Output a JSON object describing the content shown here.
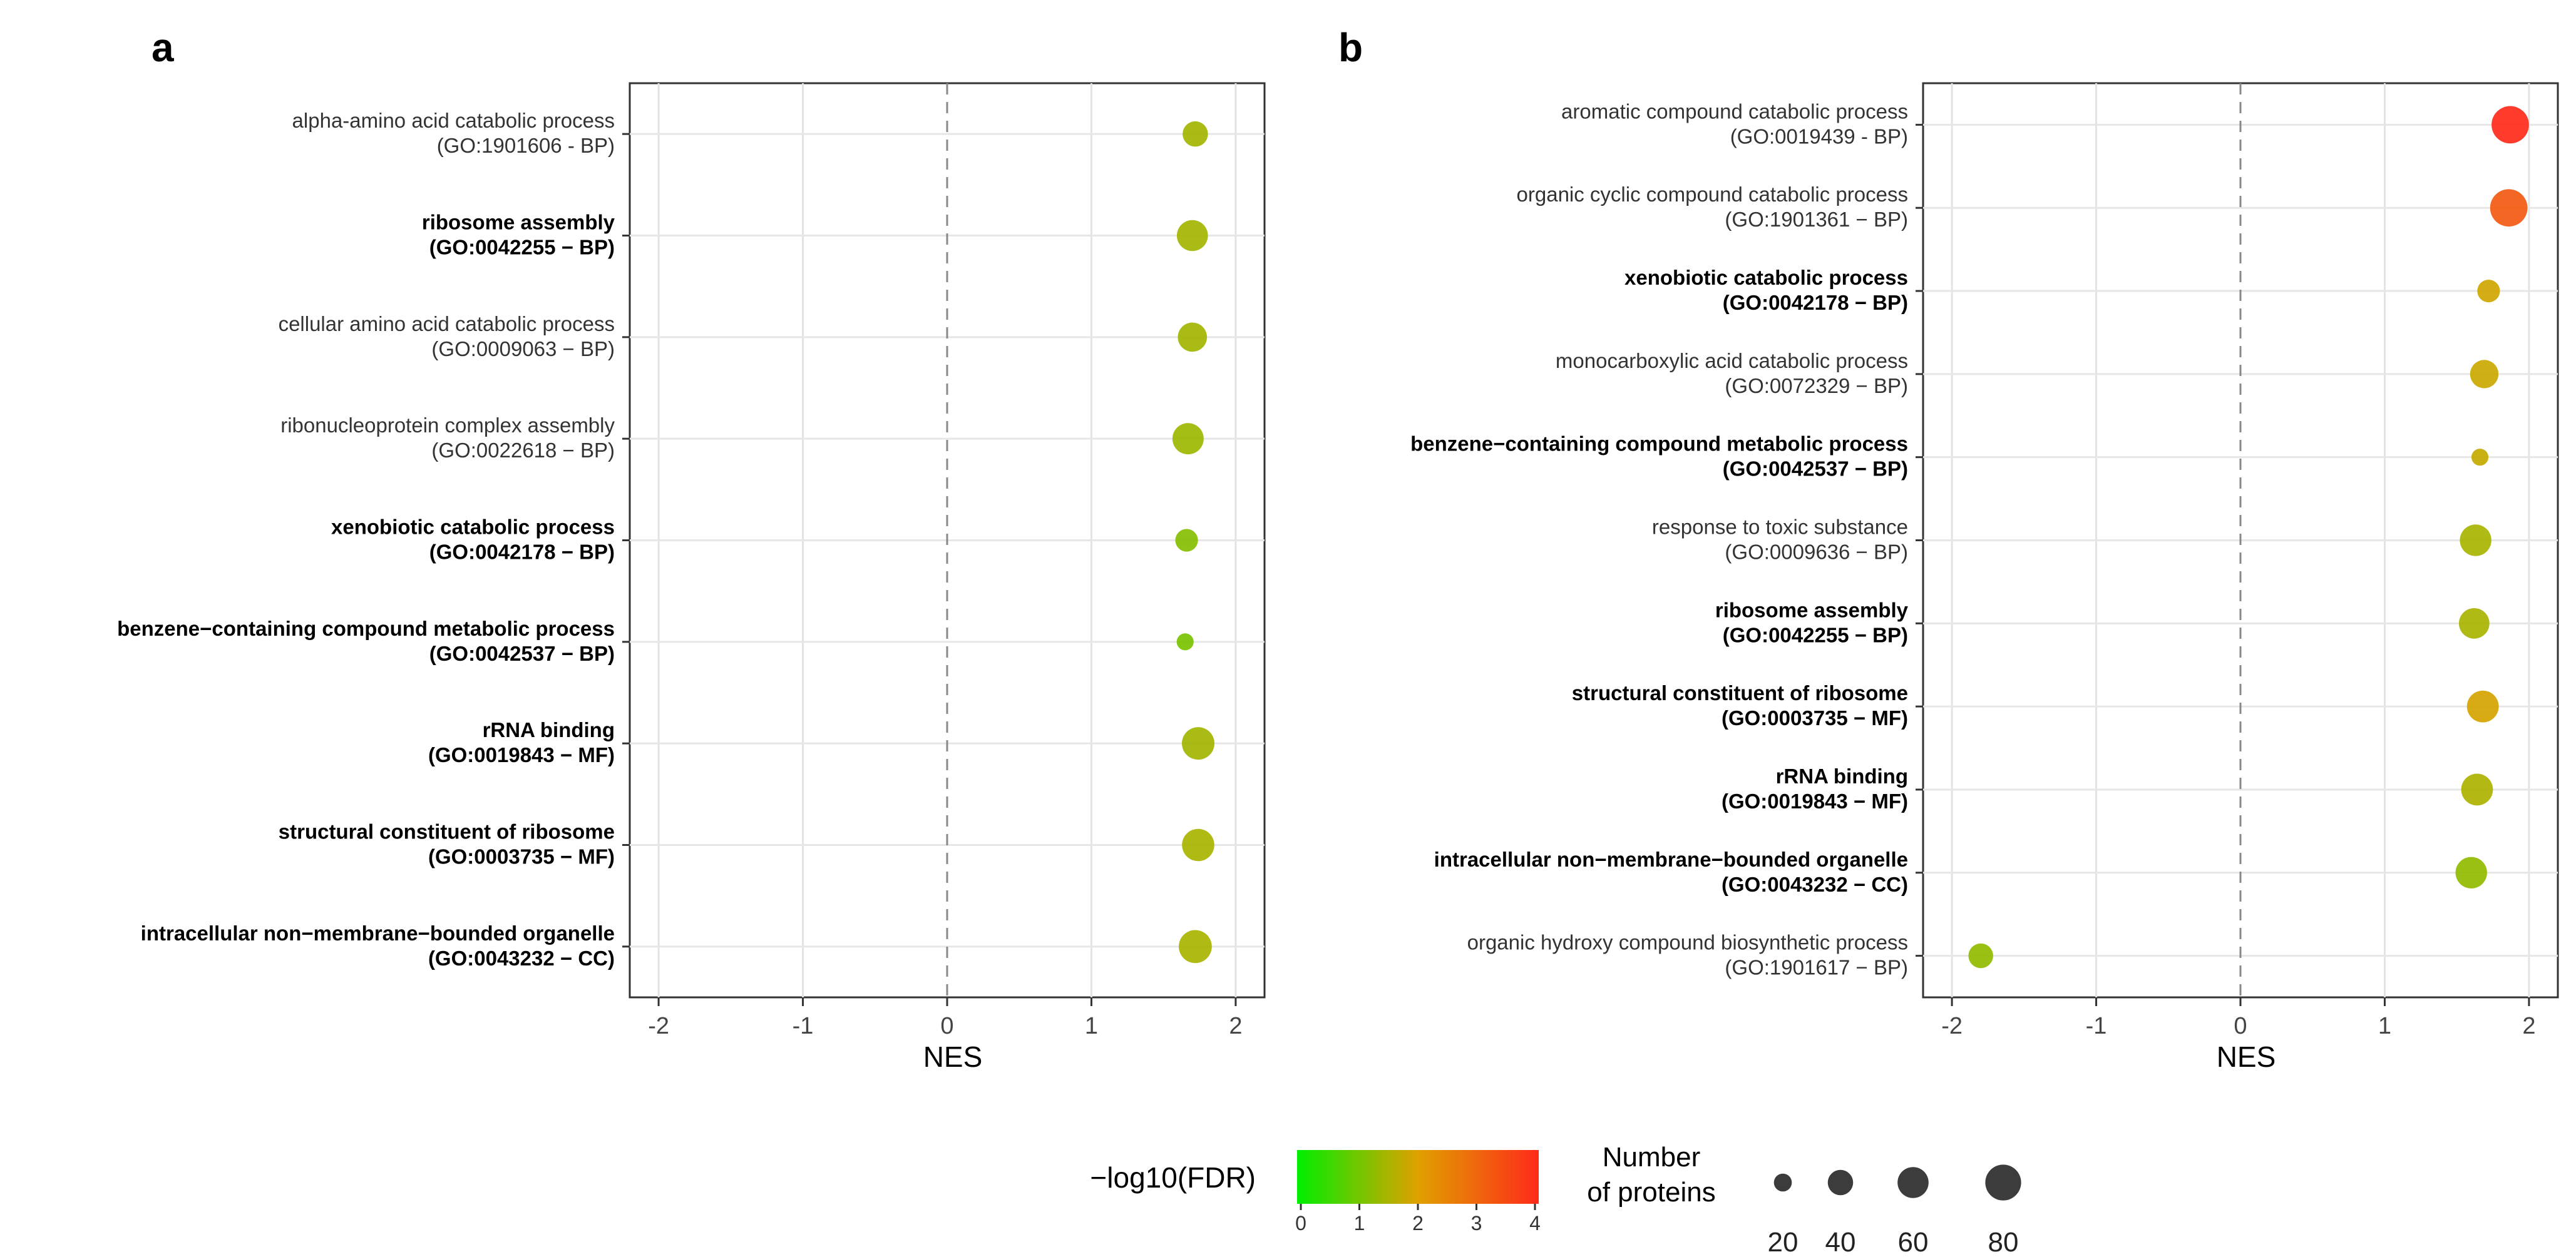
{
  "chart_data": [
    {
      "panel_label": "a",
      "type": "scatter",
      "xlabel": "NES",
      "xlim": [
        -2.2,
        2.2
      ],
      "xticks": [
        "-2",
        "-1",
        "0",
        "1",
        "2"
      ],
      "xtick_values": [
        -2,
        -1,
        0,
        1,
        2
      ],
      "grid": true,
      "reference_line": 0,
      "terms": [
        {
          "name": "alpha-amino acid catabolic process",
          "go": "(GO:1901606 - BP)",
          "bold": false,
          "nes": 1.72,
          "neg_log10_fdr": 1.45,
          "proteins": 40
        },
        {
          "name": "ribosome assembly",
          "go": "(GO:0042255 − BP)",
          "bold": true,
          "nes": 1.7,
          "neg_log10_fdr": 1.45,
          "proteins": 60
        },
        {
          "name": "cellular amino acid catabolic process",
          "go": "(GO:0009063 − BP)",
          "bold": false,
          "nes": 1.7,
          "neg_log10_fdr": 1.45,
          "proteins": 53
        },
        {
          "name": "ribonucleoprotein complex assembly",
          "go": "(GO:0022618 − BP)",
          "bold": false,
          "nes": 1.67,
          "neg_log10_fdr": 1.4,
          "proteins": 61
        },
        {
          "name": "xenobiotic catabolic process",
          "go": "(GO:0042178 − BP)",
          "bold": true,
          "nes": 1.66,
          "neg_log10_fdr": 1.2,
          "proteins": 32
        },
        {
          "name": "benzene−containing compound metabolic process",
          "go": "(GO:0042537 − BP)",
          "bold": true,
          "nes": 1.65,
          "neg_log10_fdr": 1.1,
          "proteins": 18
        },
        {
          "name": "rRNA binding",
          "go": "(GO:0019843 − MF)",
          "bold": true,
          "nes": 1.74,
          "neg_log10_fdr": 1.45,
          "proteins": 66
        },
        {
          "name": "structural constituent of ribosome",
          "go": "(GO:0003735 − MF)",
          "bold": true,
          "nes": 1.74,
          "neg_log10_fdr": 1.5,
          "proteins": 65
        },
        {
          "name": "intracellular non−membrane−bounded organelle",
          "go": "(GO:0043232 − CC)",
          "bold": true,
          "nes": 1.72,
          "neg_log10_fdr": 1.5,
          "proteins": 68
        }
      ]
    },
    {
      "panel_label": "b",
      "type": "scatter",
      "xlabel": "NES",
      "xlim": [
        -2.2,
        2.2
      ],
      "xticks": [
        "-2",
        "-1",
        "0",
        "1",
        "2"
      ],
      "xtick_values": [
        -2,
        -1,
        0,
        1,
        2
      ],
      "grid": true,
      "reference_line": 0,
      "terms": [
        {
          "name": "aromatic compound catabolic process",
          "go": "(GO:0019439 - BP)",
          "bold": false,
          "nes": 1.87,
          "neg_log10_fdr": 4.0,
          "proteins": 87
        },
        {
          "name": "organic cyclic compound catabolic process",
          "go": "(GO:1901361 − BP)",
          "bold": false,
          "nes": 1.86,
          "neg_log10_fdr": 3.2,
          "proteins": 87
        },
        {
          "name": "xenobiotic catabolic process",
          "go": "(GO:0042178 − BP)",
          "bold": true,
          "nes": 1.72,
          "neg_log10_fdr": 1.85,
          "proteins": 32
        },
        {
          "name": "monocarboxylic acid catabolic process",
          "go": "(GO:0072329 − BP)",
          "bold": false,
          "nes": 1.69,
          "neg_log10_fdr": 1.8,
          "proteins": 50
        },
        {
          "name": "benzene−containing compound metabolic process",
          "go": "(GO:0042537 − BP)",
          "bold": true,
          "nes": 1.66,
          "neg_log10_fdr": 1.75,
          "proteins": 18
        },
        {
          "name": "response to toxic substance",
          "go": "(GO:0009636 − BP)",
          "bold": false,
          "nes": 1.63,
          "neg_log10_fdr": 1.5,
          "proteins": 62
        },
        {
          "name": "ribosome assembly",
          "go": "(GO:0042255 − BP)",
          "bold": true,
          "nes": 1.62,
          "neg_log10_fdr": 1.5,
          "proteins": 58
        },
        {
          "name": "structural constituent of ribosome",
          "go": "(GO:0003735 − MF)",
          "bold": true,
          "nes": 1.68,
          "neg_log10_fdr": 1.9,
          "proteins": 63
        },
        {
          "name": "rRNA binding",
          "go": "(GO:0019843 − MF)",
          "bold": true,
          "nes": 1.64,
          "neg_log10_fdr": 1.55,
          "proteins": 63
        },
        {
          "name": "intracellular non−membrane−bounded organelle",
          "go": "(GO:0043232 − CC)",
          "bold": true,
          "nes": 1.6,
          "neg_log10_fdr": 1.3,
          "proteins": 62
        },
        {
          "name": "organic hydroxy compound biosynthetic process",
          "go": "(GO:1901617 − BP)",
          "bold": false,
          "nes": -1.8,
          "neg_log10_fdr": 1.3,
          "proteins": 38
        }
      ]
    }
  ],
  "legend": {
    "color_title": "−log10(FDR)",
    "color_range": [
      0,
      4
    ],
    "color_ticks": [
      "0",
      "1",
      "2",
      "3",
      "4"
    ],
    "color_stops": [
      "#00ee00",
      "#e0a000",
      "#ff2a1a"
    ],
    "size_title_line1": "Number",
    "size_title_line2": "of proteins",
    "size_values": [
      20,
      40,
      60,
      80
    ],
    "size_labels": [
      "20",
      "40",
      "60",
      "80"
    ],
    "size_color": "#3c3c3c"
  }
}
